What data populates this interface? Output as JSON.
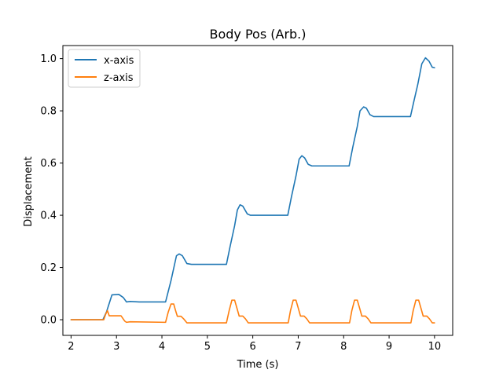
{
  "chart_data": {
    "type": "line",
    "title": "Body Pos (Arb.)",
    "xlabel": "Time (s)",
    "ylabel": "Displacement",
    "xlim": [
      1.82,
      10.4
    ],
    "ylim": [
      -0.06,
      1.05
    ],
    "xticks": [
      2,
      3,
      4,
      5,
      6,
      7,
      8,
      9,
      10
    ],
    "yticks": [
      0.0,
      0.2,
      0.4,
      0.6,
      0.8,
      1.0
    ],
    "xtick_labels": [
      "2",
      "3",
      "4",
      "5",
      "6",
      "7",
      "8",
      "9",
      "10"
    ],
    "ytick_labels": [
      "0.0",
      "0.2",
      "0.4",
      "0.6",
      "0.8",
      "1.0"
    ],
    "grid": false,
    "legend_position": "top-left",
    "series": [
      {
        "name": "x-axis",
        "color": "#1f77b4",
        "points": [
          [
            2.0,
            0.0
          ],
          [
            2.7,
            0.0
          ],
          [
            2.78,
            0.03
          ],
          [
            2.9,
            0.095
          ],
          [
            3.05,
            0.097
          ],
          [
            3.15,
            0.085
          ],
          [
            3.22,
            0.068
          ],
          [
            3.3,
            0.07
          ],
          [
            3.5,
            0.068
          ],
          [
            4.08,
            0.068
          ],
          [
            4.2,
            0.15
          ],
          [
            4.32,
            0.245
          ],
          [
            4.38,
            0.252
          ],
          [
            4.45,
            0.245
          ],
          [
            4.55,
            0.215
          ],
          [
            4.65,
            0.212
          ],
          [
            5.42,
            0.212
          ],
          [
            5.5,
            0.28
          ],
          [
            5.6,
            0.36
          ],
          [
            5.66,
            0.42
          ],
          [
            5.72,
            0.44
          ],
          [
            5.78,
            0.435
          ],
          [
            5.88,
            0.405
          ],
          [
            5.95,
            0.4
          ],
          [
            6.77,
            0.4
          ],
          [
            6.85,
            0.47
          ],
          [
            6.95,
            0.55
          ],
          [
            7.02,
            0.615
          ],
          [
            7.08,
            0.628
          ],
          [
            7.14,
            0.62
          ],
          [
            7.22,
            0.595
          ],
          [
            7.3,
            0.589
          ],
          [
            8.12,
            0.589
          ],
          [
            8.2,
            0.66
          ],
          [
            8.3,
            0.74
          ],
          [
            8.36,
            0.8
          ],
          [
            8.44,
            0.815
          ],
          [
            8.5,
            0.81
          ],
          [
            8.58,
            0.785
          ],
          [
            8.66,
            0.778
          ],
          [
            9.47,
            0.778
          ],
          [
            9.55,
            0.84
          ],
          [
            9.63,
            0.9
          ],
          [
            9.72,
            0.98
          ],
          [
            9.8,
            1.003
          ],
          [
            9.88,
            0.99
          ],
          [
            9.95,
            0.967
          ],
          [
            10.0,
            0.965
          ]
        ]
      },
      {
        "name": "z-axis",
        "color": "#ff7f0e",
        "points": [
          [
            2.0,
            0.0
          ],
          [
            2.72,
            0.0
          ],
          [
            2.76,
            0.02
          ],
          [
            2.8,
            0.035
          ],
          [
            2.84,
            0.015
          ],
          [
            2.9,
            0.015
          ],
          [
            3.1,
            0.015
          ],
          [
            3.18,
            -0.005
          ],
          [
            3.22,
            -0.01
          ],
          [
            3.3,
            -0.008
          ],
          [
            4.08,
            -0.01
          ],
          [
            4.14,
            0.03
          ],
          [
            4.2,
            0.06
          ],
          [
            4.26,
            0.06
          ],
          [
            4.3,
            0.035
          ],
          [
            4.34,
            0.013
          ],
          [
            4.42,
            0.013
          ],
          [
            4.48,
            0.003
          ],
          [
            4.55,
            -0.012
          ],
          [
            5.42,
            -0.012
          ],
          [
            5.48,
            0.035
          ],
          [
            5.54,
            0.075
          ],
          [
            5.6,
            0.075
          ],
          [
            5.65,
            0.045
          ],
          [
            5.7,
            0.014
          ],
          [
            5.78,
            0.014
          ],
          [
            5.84,
            0.003
          ],
          [
            5.9,
            -0.012
          ],
          [
            6.78,
            -0.012
          ],
          [
            6.83,
            0.035
          ],
          [
            6.89,
            0.075
          ],
          [
            6.95,
            0.075
          ],
          [
            7.0,
            0.045
          ],
          [
            7.05,
            0.014
          ],
          [
            7.13,
            0.014
          ],
          [
            7.19,
            0.003
          ],
          [
            7.25,
            -0.012
          ],
          [
            8.13,
            -0.012
          ],
          [
            8.18,
            0.035
          ],
          [
            8.24,
            0.075
          ],
          [
            8.3,
            0.075
          ],
          [
            8.35,
            0.045
          ],
          [
            8.4,
            0.014
          ],
          [
            8.48,
            0.014
          ],
          [
            8.54,
            0.003
          ],
          [
            8.6,
            -0.012
          ],
          [
            9.48,
            -0.012
          ],
          [
            9.53,
            0.035
          ],
          [
            9.59,
            0.075
          ],
          [
            9.65,
            0.075
          ],
          [
            9.7,
            0.045
          ],
          [
            9.75,
            0.014
          ],
          [
            9.83,
            0.014
          ],
          [
            9.89,
            0.003
          ],
          [
            9.95,
            -0.012
          ],
          [
            10.0,
            -0.012
          ]
        ]
      }
    ]
  }
}
